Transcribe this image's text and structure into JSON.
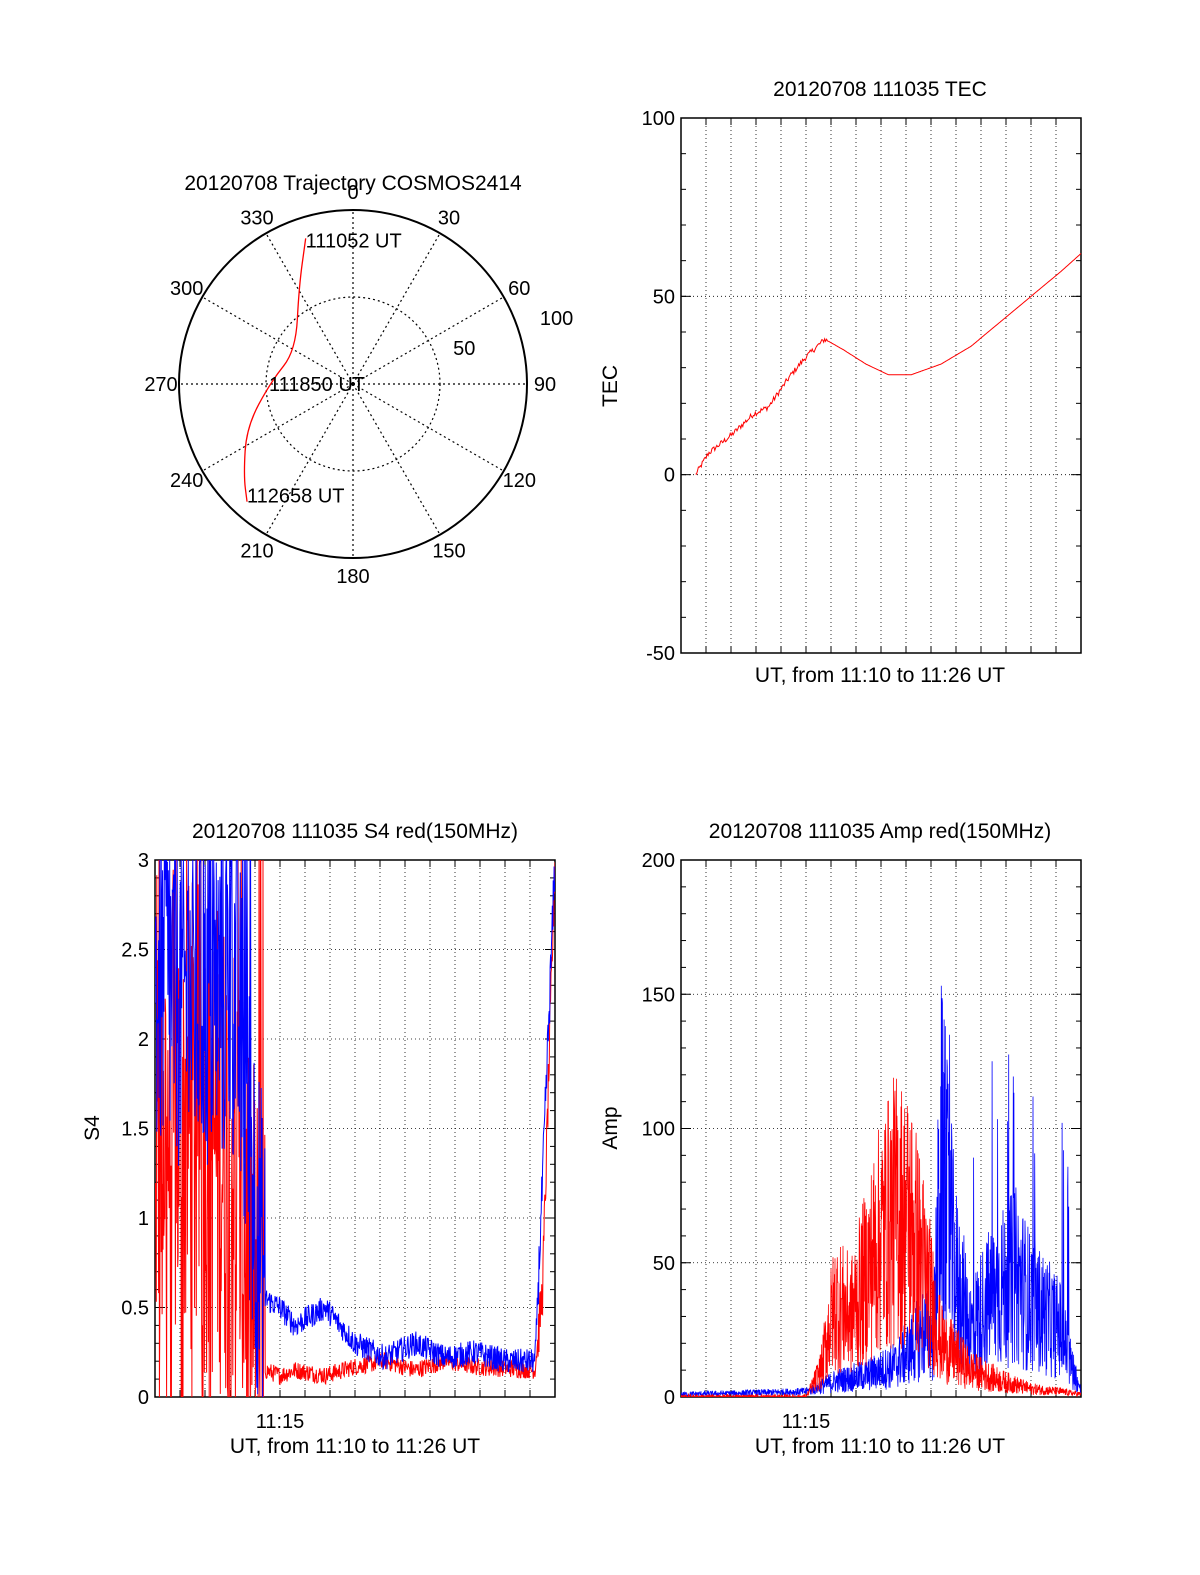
{
  "colors": {
    "red": "#ff0000",
    "blue": "#0000ff",
    "axis": "#000000",
    "grid": "#000000"
  },
  "chart_data": [
    {
      "type": "polar",
      "title": "20120708 Trajectory COSMOS2414",
      "angle_ticks": [
        "0",
        "30",
        "60",
        "90",
        "120",
        "150",
        "180",
        "210",
        "240",
        "270",
        "300",
        "330"
      ],
      "radius_ticks": [
        "50",
        "100"
      ],
      "rlim": [
        0,
        100
      ],
      "grid": true,
      "annotations": [
        "111052 UT",
        "111850 UT",
        "112658 UT"
      ],
      "series": [
        {
          "color": "#ff0000",
          "points": [
            [
              342,
              88
            ],
            [
              331,
              64
            ],
            [
              300,
              38
            ],
            [
              272,
              47
            ],
            [
              248,
              66
            ],
            [
              230,
              82
            ],
            [
              222,
              91
            ]
          ]
        }
      ]
    },
    {
      "type": "line",
      "title": "20120708 111035 TEC",
      "xlabel": "UT, from 11:10 to 11:26 UT",
      "ylabel": "TEC",
      "xlim": [
        11.1667,
        11.4333
      ],
      "ylim": [
        -50,
        100
      ],
      "yticks": [
        "100",
        "50",
        "0",
        "-50"
      ],
      "grid": true,
      "series": [
        {
          "color": "#ff0000",
          "x": [
            11.1764,
            11.185,
            11.2,
            11.215,
            11.225,
            11.24,
            11.25,
            11.2625,
            11.275,
            11.29,
            11.305,
            11.32,
            11.34,
            11.36,
            11.38,
            11.4,
            11.42,
            11.4333
          ],
          "y": [
            0,
            6,
            11,
            17,
            19,
            28,
            33,
            38,
            35,
            31,
            28,
            28,
            31,
            36,
            43,
            50,
            57,
            62
          ]
        }
      ]
    },
    {
      "type": "line",
      "title": "20120708 111035 S4 red(150MHz)",
      "xlabel": "UT, from 11:10 to 11:26 UT",
      "ylabel": "S4",
      "xlim": [
        11.1667,
        11.4333
      ],
      "ylim": [
        0,
        3
      ],
      "yticks": [
        "3",
        "2.5",
        "2",
        "1.5",
        "1",
        "0.5",
        "0"
      ],
      "xticks": [
        "11:15"
      ],
      "grid": true,
      "series": [
        {
          "color": "#ff0000",
          "x": [
            11.17,
            11.2,
            11.22,
            11.24,
            11.25,
            11.26,
            11.28,
            11.3,
            11.32,
            11.34,
            11.36,
            11.38,
            11.4,
            11.42,
            11.425,
            11.4333
          ],
          "y": [
            1.6,
            1.5,
            1.3,
            0.15,
            0.12,
            0.15,
            0.12,
            0.17,
            0.2,
            0.15,
            0.2,
            0.17,
            0.16,
            0.15,
            0.6,
            3
          ]
        },
        {
          "color": "#0000ff",
          "x": [
            11.17,
            11.2,
            11.22,
            11.24,
            11.25,
            11.26,
            11.28,
            11.3,
            11.32,
            11.34,
            11.36,
            11.38,
            11.4,
            11.42,
            11.425,
            11.4333
          ],
          "y": [
            2.3,
            2.2,
            2.3,
            0.55,
            0.5,
            0.4,
            0.5,
            0.3,
            0.22,
            0.3,
            0.22,
            0.25,
            0.2,
            0.2,
            1.2,
            3
          ]
        }
      ]
    },
    {
      "type": "line",
      "title": "20120708 111035 Amp red(150MHz)",
      "xlabel": "UT, from 11:10 to 11:26 UT",
      "ylabel": "Amp",
      "xlim": [
        11.1667,
        11.4333
      ],
      "ylim": [
        0,
        200
      ],
      "yticks": [
        "200",
        "150",
        "100",
        "50",
        "0"
      ],
      "xticks": [
        "11:15"
      ],
      "grid": true,
      "series": [
        {
          "color": "#ff0000",
          "x": [
            11.1667,
            11.25,
            11.26,
            11.265,
            11.27,
            11.28,
            11.29,
            11.3,
            11.31,
            11.32,
            11.33,
            11.34,
            11.35,
            11.36,
            11.38,
            11.4,
            11.42,
            11.4333
          ],
          "y": [
            0,
            0,
            10,
            25,
            35,
            30,
            45,
            60,
            70,
            65,
            45,
            20,
            15,
            10,
            6,
            3,
            2,
            1
          ]
        },
        {
          "color": "#0000ff",
          "x": [
            11.1667,
            11.25,
            11.27,
            11.29,
            11.31,
            11.32,
            11.33,
            11.335,
            11.34,
            11.35,
            11.36,
            11.37,
            11.38,
            11.39,
            11.4,
            11.41,
            11.42,
            11.425,
            11.4333
          ],
          "y": [
            1,
            2,
            6,
            8,
            12,
            18,
            25,
            20,
            90,
            45,
            25,
            35,
            40,
            45,
            35,
            30,
            25,
            15,
            2
          ]
        }
      ]
    }
  ]
}
